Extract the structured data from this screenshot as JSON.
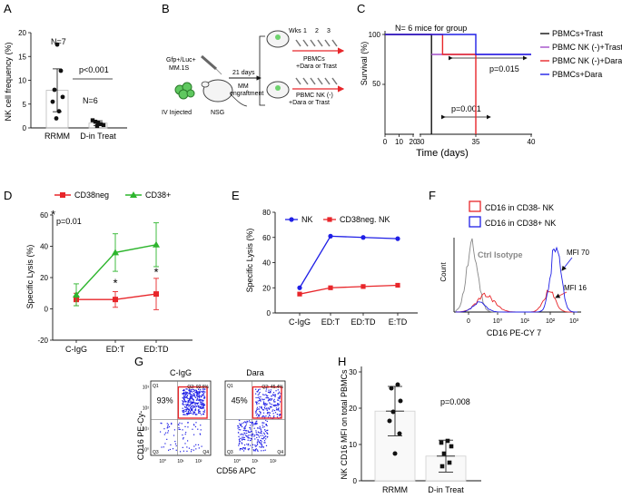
{
  "panel_labels": {
    "A": "A",
    "B": "B",
    "C": "C",
    "D": "D",
    "E": "E",
    "F": "F",
    "G": "G",
    "H": "H"
  },
  "colors": {
    "red": "#e8262a",
    "green": "#2db52d",
    "blue": "#1f1fe6",
    "purple": "#a24ec9",
    "black": "#111111",
    "gray": "#888888"
  },
  "chart_data": [
    {
      "id": "A",
      "type": "scatter",
      "ylabel": "NK cell frequency (%)",
      "categories": [
        "RRMM",
        "D-in Treat"
      ],
      "ylim": [
        0,
        20
      ],
      "yticks": [
        0,
        5,
        10,
        15,
        20
      ],
      "points": [
        [
          17.5,
          12.0,
          8.0,
          6.5,
          5.5,
          3.5,
          2.0
        ],
        [
          1.6,
          1.3,
          1.0,
          0.8,
          0.6,
          0.4
        ]
      ],
      "means": [
        7.9,
        1.0
      ],
      "sd": [
        4.5,
        0.5
      ],
      "n_labels": [
        "N=7",
        "N=6"
      ],
      "pvalue": "p<0.001"
    },
    {
      "id": "C",
      "type": "line",
      "xlabel": "Time (days)",
      "ylabel": "Survival (%)",
      "annotation": "N= 6 mice for group",
      "xticks": [
        "0",
        "10",
        "20",
        "30",
        "35",
        "40"
      ],
      "yticks": [
        "100",
        "50"
      ],
      "series": [
        {
          "name": "PBMCs+Trast",
          "color": "#111111",
          "x": [
            0,
            31,
            31
          ],
          "y": [
            100,
            100,
            0
          ]
        },
        {
          "name": "PBMC NK (-)+Trast",
          "color": "#a24ec9",
          "x": [
            31,
            40
          ],
          "y": [
            80,
            80
          ]
        },
        {
          "name": "PBMC NK (-)+Dara",
          "color": "#e8262a",
          "x": [
            0,
            32,
            32,
            35,
            35
          ],
          "y": [
            100,
            100,
            80,
            80,
            0
          ]
        },
        {
          "name": "PBMCs+Dara",
          "color": "#1f1fe6",
          "x": [
            0,
            35,
            35,
            40
          ],
          "y": [
            100,
            100,
            80,
            80
          ]
        }
      ],
      "pvalues": [
        "p=0.015",
        "p=0.001"
      ]
    },
    {
      "id": "D",
      "type": "line",
      "ylabel": "Specific Lysis (%)",
      "categories": [
        "C-IgG",
        "ED:T",
        "ED:TD"
      ],
      "ylim": [
        -20,
        60
      ],
      "yticks": [
        -20,
        0,
        20,
        40,
        60
      ],
      "series": [
        {
          "name": "CD38neg",
          "color": "#e8262a",
          "values": [
            6,
            6,
            9.5
          ],
          "err": [
            4,
            5,
            10
          ]
        },
        {
          "name": "CD38+",
          "color": "#2db52d",
          "values": [
            9,
            36,
            41
          ],
          "err": [
            7,
            12,
            14
          ]
        }
      ],
      "stars": [
        "*",
        "*",
        "*"
      ],
      "pvalue": "p=0.01"
    },
    {
      "id": "E",
      "type": "line",
      "ylabel": "Specific Lysis (%)",
      "categories": [
        "C-IgG",
        "ED:T",
        "ED:TD",
        "E:TD"
      ],
      "ylim": [
        0,
        80
      ],
      "yticks": [
        0,
        20,
        40,
        60,
        80
      ],
      "series": [
        {
          "name": "NK",
          "color": "#1f1fe6",
          "values": [
            20,
            61,
            60,
            59
          ]
        },
        {
          "name": "CD38neg. NK",
          "color": "#e8262a",
          "values": [
            15,
            20,
            21,
            22
          ]
        }
      ]
    },
    {
      "id": "F",
      "type": "area",
      "xlabel": "CD16 PE-CY 7",
      "ylabel": "Count",
      "legend": [
        "CD16  in CD38- NK",
        "CD16 in CD38+ NK"
      ],
      "labels": {
        "isotype": "Ctrl Isotype",
        "mfi_high": "MFI 70",
        "mfi_low": "MFI 16"
      },
      "xticks": [
        "0",
        "10⁰",
        "10¹",
        "10²",
        "10³"
      ]
    },
    {
      "id": "G",
      "type": "scatter",
      "xlabel": "CD56 APC",
      "ylabel": "CD16 PE-Cy-",
      "plots": [
        {
          "title": "C-IgG",
          "gate_pct": "93%",
          "q_tr": "Q2: 92.6%",
          "q_tl": "Q1",
          "q_bl": "Q3",
          "q_br": "Q4"
        },
        {
          "title": "Dara",
          "gate_pct": "45%",
          "q_tr": "Q2: 45.4%",
          "q_tl": "Q1",
          "q_bl": "Q3",
          "q_br": "Q4"
        }
      ],
      "yticks": [
        "10³",
        "10²",
        "10¹",
        "10⁰"
      ],
      "xticks": [
        "10⁰",
        "10¹",
        "10²"
      ]
    },
    {
      "id": "H",
      "type": "bar",
      "ylabel": "NK CD16 MFI on total PBMCs",
      "categories": [
        "RRMM",
        "D-in Treat"
      ],
      "values": [
        19.2,
        6.8
      ],
      "sd": [
        6.8,
        4.4
      ],
      "ylim": [
        0,
        30
      ],
      "yticks": [
        0,
        10,
        20,
        30
      ],
      "points": [
        [
          26.5,
          25.5,
          22,
          19,
          16.5,
          13,
          7.5
        ],
        [
          11,
          10.5,
          9.5,
          7.5,
          5,
          4
        ]
      ],
      "pvalue": "p=0.008"
    }
  ],
  "diagram": {
    "cells": "Gfp+/Luc+\nMM.1S",
    "iv": "IV Injected",
    "mouse": "NSG",
    "arrow_top": "21 days",
    "arrow_bottom": "MM\nengraftment",
    "wks": "Wks",
    "week_nums": [
      "1",
      "2",
      "3"
    ],
    "group1": "PBMCs\n+Dara or Trast",
    "group2": "PBMC NK (-)\n+Dara or Trast"
  }
}
